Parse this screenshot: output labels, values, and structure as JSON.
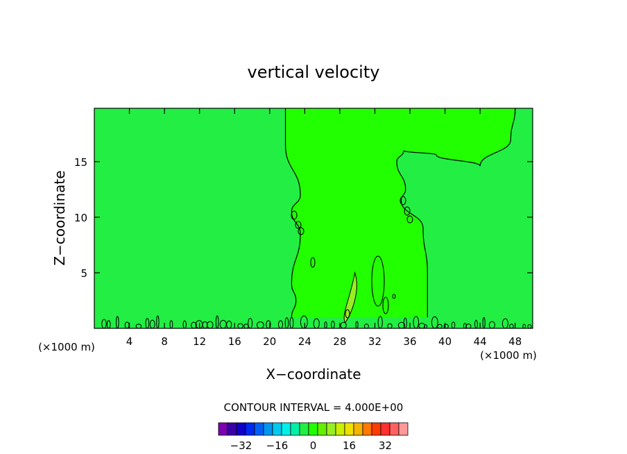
{
  "chart_data": {
    "type": "contour",
    "title": "vertical velocity",
    "xlabel": "X−coordinate",
    "ylabel": "Z−coordinate",
    "x_unit_left": "(×1000 m)",
    "x_unit_right": "(×1000 m)",
    "xlim": [
      0,
      50
    ],
    "ylim": [
      0,
      19.8
    ],
    "x_ticks": [
      4,
      8,
      12,
      16,
      20,
      24,
      28,
      32,
      36,
      40,
      44,
      48
    ],
    "y_ticks": [
      5,
      10,
      15
    ],
    "x_tick_labels": [
      "4",
      "8",
      "12",
      "16",
      "20",
      "24",
      "28",
      "32",
      "36",
      "40",
      "44",
      "48"
    ],
    "y_tick_labels": [
      "5",
      "10",
      "15"
    ],
    "background_color": "#22ee44",
    "updraft_color": "#22ff00",
    "core_color": "#99ee22",
    "updraft_region": {
      "x_left_at_z": [
        [
          21.8,
          19.8
        ],
        [
          21.8,
          16.5
        ],
        [
          23.5,
          12.0
        ],
        [
          22.5,
          10.5
        ],
        [
          23.5,
          8.5
        ],
        [
          22.5,
          4.0
        ],
        [
          23.0,
          2.5
        ],
        [
          22.5,
          1.0
        ]
      ],
      "x_right_at_z": [
        [
          48.0,
          19.8
        ],
        [
          47.5,
          17.0
        ],
        [
          44.0,
          14.6
        ],
        [
          39.0,
          15.6
        ],
        [
          35.3,
          16.0
        ],
        [
          34.5,
          15.0
        ],
        [
          35.5,
          12.5
        ],
        [
          35.0,
          11.5
        ],
        [
          37.5,
          9.0
        ],
        [
          38.0,
          5.0
        ],
        [
          38.0,
          1.0
        ]
      ]
    },
    "core_region": {
      "x_range": [
        28.5,
        30.0
      ],
      "z_range": [
        0.5,
        5.0
      ]
    },
    "colorbar": {
      "title": "CONTOUR INTERVAL = 4.000E+00",
      "interval": 4.0,
      "tick_values": [
        -32,
        -16,
        0,
        16,
        32
      ],
      "tick_labels": [
        "−32",
        "−16",
        "0",
        "16",
        "32"
      ],
      "colors": [
        "#7a00b0",
        "#3a00a8",
        "#1000c8",
        "#0028f0",
        "#0060f5",
        "#0096f0",
        "#00c8f0",
        "#00f0e6",
        "#00f0a8",
        "#22ee44",
        "#22ff00",
        "#66ee00",
        "#99ee22",
        "#ccee00",
        "#f0e000",
        "#f5b400",
        "#ff7800",
        "#ff3c00",
        "#ff3030",
        "#ff6060",
        "#ff9898"
      ]
    }
  }
}
